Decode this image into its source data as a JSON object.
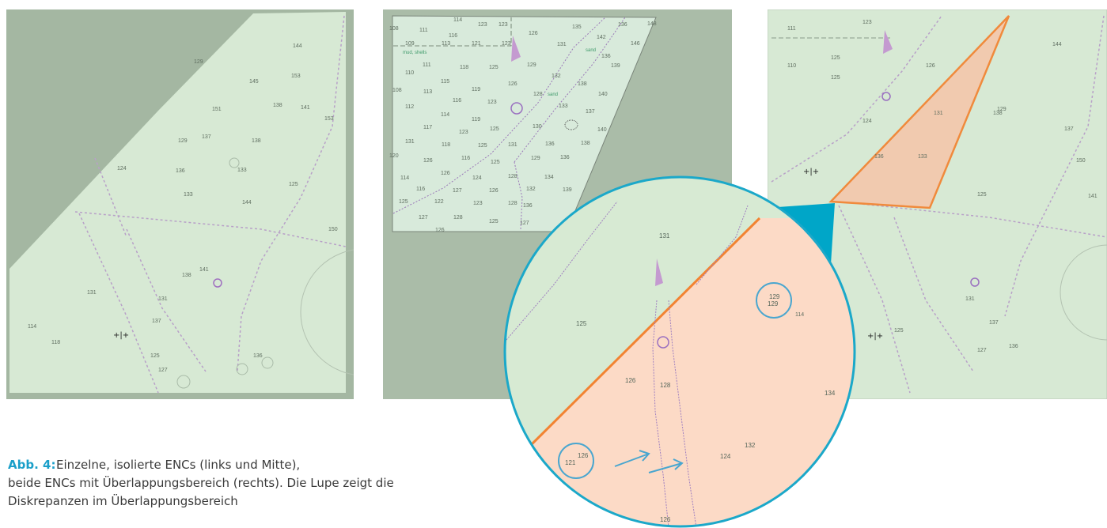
{
  "panels": {
    "left": {
      "soundings": [
        144,
        129,
        145,
        153,
        138,
        141,
        151,
        153,
        129,
        137,
        138,
        124,
        136,
        133,
        125,
        144,
        133,
        138,
        141,
        131,
        114,
        118,
        127,
        136,
        125,
        131,
        137,
        150
      ]
    },
    "middle": {
      "soundings": [
        114,
        123,
        123,
        126,
        135,
        136,
        148,
        111,
        116,
        142,
        109,
        113,
        121,
        123,
        131,
        136,
        146,
        139,
        111,
        118,
        125,
        129,
        110,
        115,
        126,
        132,
        138,
        119,
        113,
        116,
        123,
        128,
        133,
        140,
        112,
        114,
        119,
        137,
        117,
        123,
        125,
        130,
        140,
        131,
        118,
        125,
        131,
        136,
        138,
        126,
        116,
        125,
        129,
        136,
        126,
        124,
        128,
        134,
        114,
        127,
        126,
        132,
        139,
        116,
        122,
        123,
        128,
        136,
        125,
        127,
        128,
        125,
        127,
        126,
        108,
        108,
        120
      ],
      "labels": [
        "mud, shells",
        "sand",
        "sand"
      ]
    },
    "right": {
      "soundings": [
        111,
        123,
        125,
        126,
        144,
        110,
        125,
        138,
        131,
        129,
        137,
        150,
        124,
        136,
        133,
        125,
        141,
        131,
        114,
        137,
        127,
        136,
        125
      ]
    }
  },
  "magnifier": {
    "soundings": [
      131,
      125,
      129,
      129,
      126,
      128,
      126,
      121,
      124,
      132,
      134,
      126
    ]
  },
  "caption": {
    "label": "Abb. 4:",
    "lines": [
      "Einzelne, isolierte ENCs (links und Mitte),",
      "beide ENCs mit Überlappungsbereich (rechts). Die Lupe zeigt die",
      "Diskrepanzen im Überlappungsbereich"
    ]
  }
}
